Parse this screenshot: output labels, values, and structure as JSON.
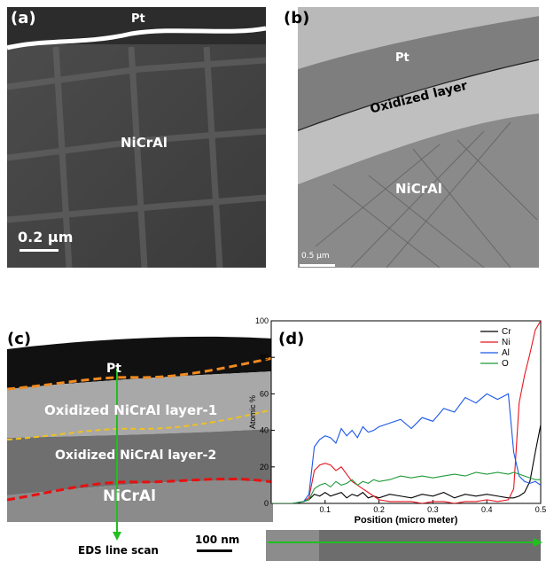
{
  "panels": {
    "a": {
      "label": "(a)",
      "pt": "Pt",
      "material": "NiCrAl",
      "scale": "0.2 μm"
    },
    "b": {
      "label": "(b)",
      "pt": "Pt",
      "oxide": "Oxidized layer",
      "material": "NiCrAl",
      "scale": "0.5 μm"
    },
    "c": {
      "label": "(c)",
      "pt": "Pt",
      "layer1": "Oxidized NiCrAl layer-1",
      "layer2": "Oxidized NiCrAl layer-2",
      "material": "NiCrAl",
      "scale": "100 nm",
      "eds": "EDS line scan"
    },
    "d": {
      "label": "(d)"
    }
  },
  "colors": {
    "cr": "#000000",
    "ni": "#e8141e",
    "al": "#1a57e8",
    "o": "#1f9a3a",
    "orange_dash": "#f08a20",
    "yellow_dash": "#f0c020",
    "red_dash": "#e81010",
    "arrow": "#20c020"
  },
  "chart_data": {
    "type": "line",
    "xlabel": "Position (micro meter)",
    "ylabel": "Atomic %",
    "xlim": [
      0,
      0.5
    ],
    "ylim": [
      0,
      100
    ],
    "xticks": [
      "0.1",
      "0.2",
      "0.3",
      "0.4",
      "0.5"
    ],
    "yticks": [
      "0",
      "20",
      "40",
      "60",
      "80",
      "100"
    ],
    "legend_position": "top-right",
    "x": [
      0.0,
      0.02,
      0.04,
      0.06,
      0.07,
      0.08,
      0.09,
      0.1,
      0.11,
      0.12,
      0.13,
      0.14,
      0.15,
      0.16,
      0.17,
      0.18,
      0.19,
      0.2,
      0.22,
      0.24,
      0.26,
      0.28,
      0.3,
      0.32,
      0.34,
      0.36,
      0.38,
      0.4,
      0.42,
      0.44,
      0.45,
      0.46,
      0.47,
      0.48,
      0.49,
      0.5
    ],
    "series": [
      {
        "name": "Cr",
        "values": [
          0,
          0,
          0,
          1,
          2,
          5,
          4,
          6,
          4,
          5,
          6,
          3,
          5,
          4,
          6,
          3,
          4,
          3,
          5,
          4,
          3,
          5,
          4,
          6,
          3,
          5,
          4,
          5,
          4,
          3,
          3,
          4,
          6,
          12,
          28,
          43
        ]
      },
      {
        "name": "Ni",
        "values": [
          0,
          0,
          0,
          1,
          3,
          18,
          21,
          22,
          21,
          18,
          20,
          16,
          12,
          10,
          8,
          6,
          4,
          2,
          1,
          1,
          1,
          0,
          1,
          1,
          0,
          1,
          1,
          2,
          1,
          2,
          8,
          55,
          70,
          82,
          95,
          100
        ]
      },
      {
        "name": "Al",
        "values": [
          0,
          0,
          0,
          1,
          5,
          31,
          35,
          37,
          36,
          33,
          41,
          37,
          40,
          36,
          42,
          39,
          40,
          42,
          44,
          46,
          41,
          47,
          45,
          52,
          50,
          58,
          55,
          60,
          57,
          60,
          28,
          15,
          12,
          11,
          12,
          10
        ]
      },
      {
        "name": "O",
        "values": [
          0,
          0,
          0,
          1,
          2,
          8,
          10,
          11,
          9,
          12,
          10,
          11,
          13,
          10,
          12,
          11,
          13,
          12,
          13,
          15,
          14,
          15,
          14,
          15,
          16,
          15,
          17,
          16,
          17,
          16,
          17,
          16,
          15,
          14,
          13,
          13
        ]
      }
    ]
  }
}
